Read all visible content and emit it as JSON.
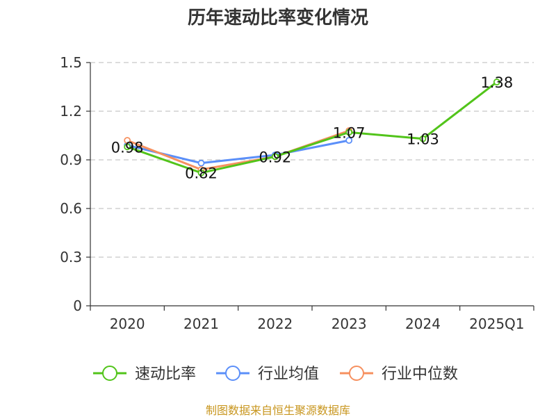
{
  "chart_data": {
    "type": "line",
    "title": "历年速动比率变化情况",
    "categories": [
      "2020",
      "2021",
      "2022",
      "2023",
      "2024",
      "2025Q1"
    ],
    "ylim": [
      0,
      1.5
    ],
    "yticks": [
      "0",
      "0.3",
      "0.6",
      "0.9",
      "1.2",
      "1.5"
    ],
    "grid": true,
    "legend_position": "bottom",
    "series": [
      {
        "name": "速动比率",
        "color": "#52c41a",
        "values": [
          0.98,
          0.82,
          0.92,
          1.07,
          1.03,
          1.38
        ],
        "labels": [
          "0.98",
          "0.82",
          "0.92",
          "1.07",
          "1.03",
          "1.38"
        ]
      },
      {
        "name": "行业均值",
        "color": "#5b8ff9",
        "values": [
          0.99,
          0.88,
          0.93,
          1.02,
          null,
          null
        ]
      },
      {
        "name": "行业中位数",
        "color": "#f6905f",
        "values": [
          1.02,
          0.84,
          0.92,
          1.08,
          null,
          null
        ]
      }
    ],
    "source": "制图数据来自恒生聚源数据库"
  }
}
